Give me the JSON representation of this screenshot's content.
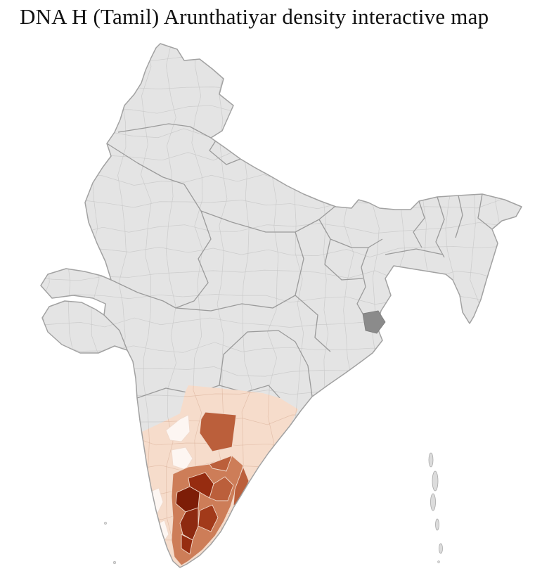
{
  "title": "DNA H (Tamil) Arunthatiyar density interactive map",
  "map": {
    "label": "India district-level choropleth",
    "palette": {
      "sea": "#ffffff",
      "land": "#e4e4e4",
      "district_line": "#c9c9c9",
      "colored_district_line": "#f0d9cb",
      "state_line": "#9b9b9b",
      "outline": "#a2a2a2",
      "highlight_district": "#8b8b8b",
      "island": "#dcdcdc",
      "island_stroke": "#a8a8a8"
    },
    "density_scale": [
      "#fdf6f2",
      "#f6dccb",
      "#cd7d58",
      "#bb5f3b",
      "#a23a1a",
      "#962c10",
      "#8e2a10",
      "#7d1d07"
    ],
    "regions": [
      {
        "id": "south-india-base",
        "level": 1
      },
      {
        "id": "andhra-inland-district",
        "level": 3
      },
      {
        "id": "karnataka-district-a",
        "level": 0
      },
      {
        "id": "karnataka-district-b",
        "level": 0
      },
      {
        "id": "kerala-district-a",
        "level": 0
      },
      {
        "id": "kerala-district-b",
        "level": 0
      },
      {
        "id": "tamil-nadu-base",
        "level": 2
      },
      {
        "id": "tamil-nadu-north-district",
        "level": 3
      },
      {
        "id": "tamil-nadu-east-district",
        "level": 3
      },
      {
        "id": "tamil-nadu-core-a",
        "level": 5
      },
      {
        "id": "tamil-nadu-west-core",
        "level": 7
      },
      {
        "id": "tamil-nadu-core-b",
        "level": 6
      },
      {
        "id": "tamil-nadu-mid-a",
        "level": 4
      },
      {
        "id": "tamil-nadu-mid-b",
        "level": 3
      },
      {
        "id": "tamil-nadu-south-district",
        "level": 5
      }
    ]
  }
}
